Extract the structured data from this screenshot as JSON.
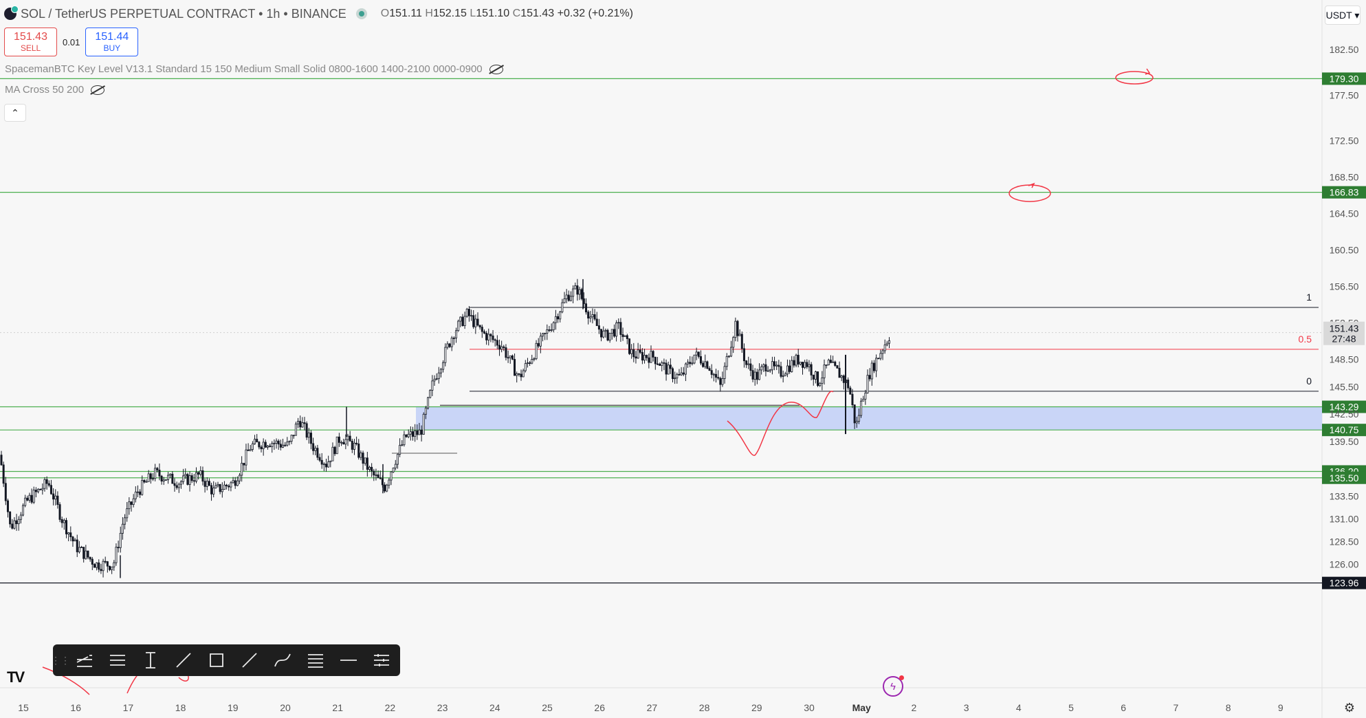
{
  "header": {
    "symbol": "SOL / TetherUS PERPETUAL CONTRACT • 1h • BINANCE",
    "o_label": "O",
    "o": "151.11",
    "h_label": "H",
    "h": "152.15",
    "l_label": "L",
    "l": "151.10",
    "c_label": "C",
    "c": "151.43",
    "change": "+0.32 (+0.21%)"
  },
  "trade": {
    "sell_price": "151.43",
    "sell_label": "SELL",
    "spread": "0.01",
    "buy_price": "151.44",
    "buy_label": "BUY"
  },
  "indicators": [
    "SpacemanBTC Key Level V13.1 Standard 15 150 Medium Small Solid 0800-1600 1400-2100 0000-0900",
    "MA Cross 50 200"
  ],
  "collapse_icon": "chevron-up",
  "currency": "USDT ▾",
  "colors": {
    "green": "#2e7d32",
    "level_line": "#4caf50",
    "red": "#f23645",
    "zone": "#c6d3f7",
    "candle": "#131722"
  },
  "price_axis": {
    "ticks": [
      "182.50",
      "177.50",
      "172.50",
      "168.50",
      "164.50",
      "160.50",
      "156.50",
      "152.50",
      "148.50",
      "145.50",
      "142.50",
      "139.50",
      "133.50",
      "131.00",
      "128.50",
      "126.00"
    ],
    "tick_values": [
      182.5,
      177.5,
      172.5,
      168.5,
      164.5,
      160.5,
      156.5,
      152.5,
      148.5,
      145.5,
      142.5,
      139.5,
      133.5,
      131.0,
      128.5,
      126.0
    ],
    "current_price": "151.43",
    "countdown": "27:48"
  },
  "levels": [
    {
      "label": "179.30",
      "value": 179.3
    },
    {
      "label": "166.83",
      "value": 166.83
    },
    {
      "label": "143.29",
      "value": 143.29
    },
    {
      "label": "140.75",
      "value": 140.75
    },
    {
      "label": "136.20",
      "value": 136.2
    },
    {
      "label": "135.50",
      "value": 135.5
    },
    {
      "label": "123.96",
      "value": 123.96,
      "style": "dark"
    }
  ],
  "fib": [
    {
      "label": "1",
      "value": 154.2
    },
    {
      "label": "0.5",
      "value": 149.6,
      "color": "red"
    },
    {
      "label": "0",
      "value": 145.0
    }
  ],
  "time_axis": [
    "15",
    "16",
    "17",
    "18",
    "19",
    "20",
    "21",
    "22",
    "23",
    "24",
    "25",
    "26",
    "27",
    "28",
    "29",
    "30",
    "May",
    "2",
    "3",
    "4",
    "5",
    "6",
    "7",
    "8",
    "9"
  ],
  "toolbar_tools": [
    "multi-line-icon",
    "horizontal-lines-icon",
    "vertical-line-icon",
    "trend-points-icon",
    "rectangle-icon",
    "trend-line-icon",
    "curve-icon",
    "fib-icon",
    "horizontal-ray-icon",
    "settings-lines-icon"
  ],
  "logo": "TV",
  "bolt_icon": "ϟ",
  "settings_icon": "⚙"
}
